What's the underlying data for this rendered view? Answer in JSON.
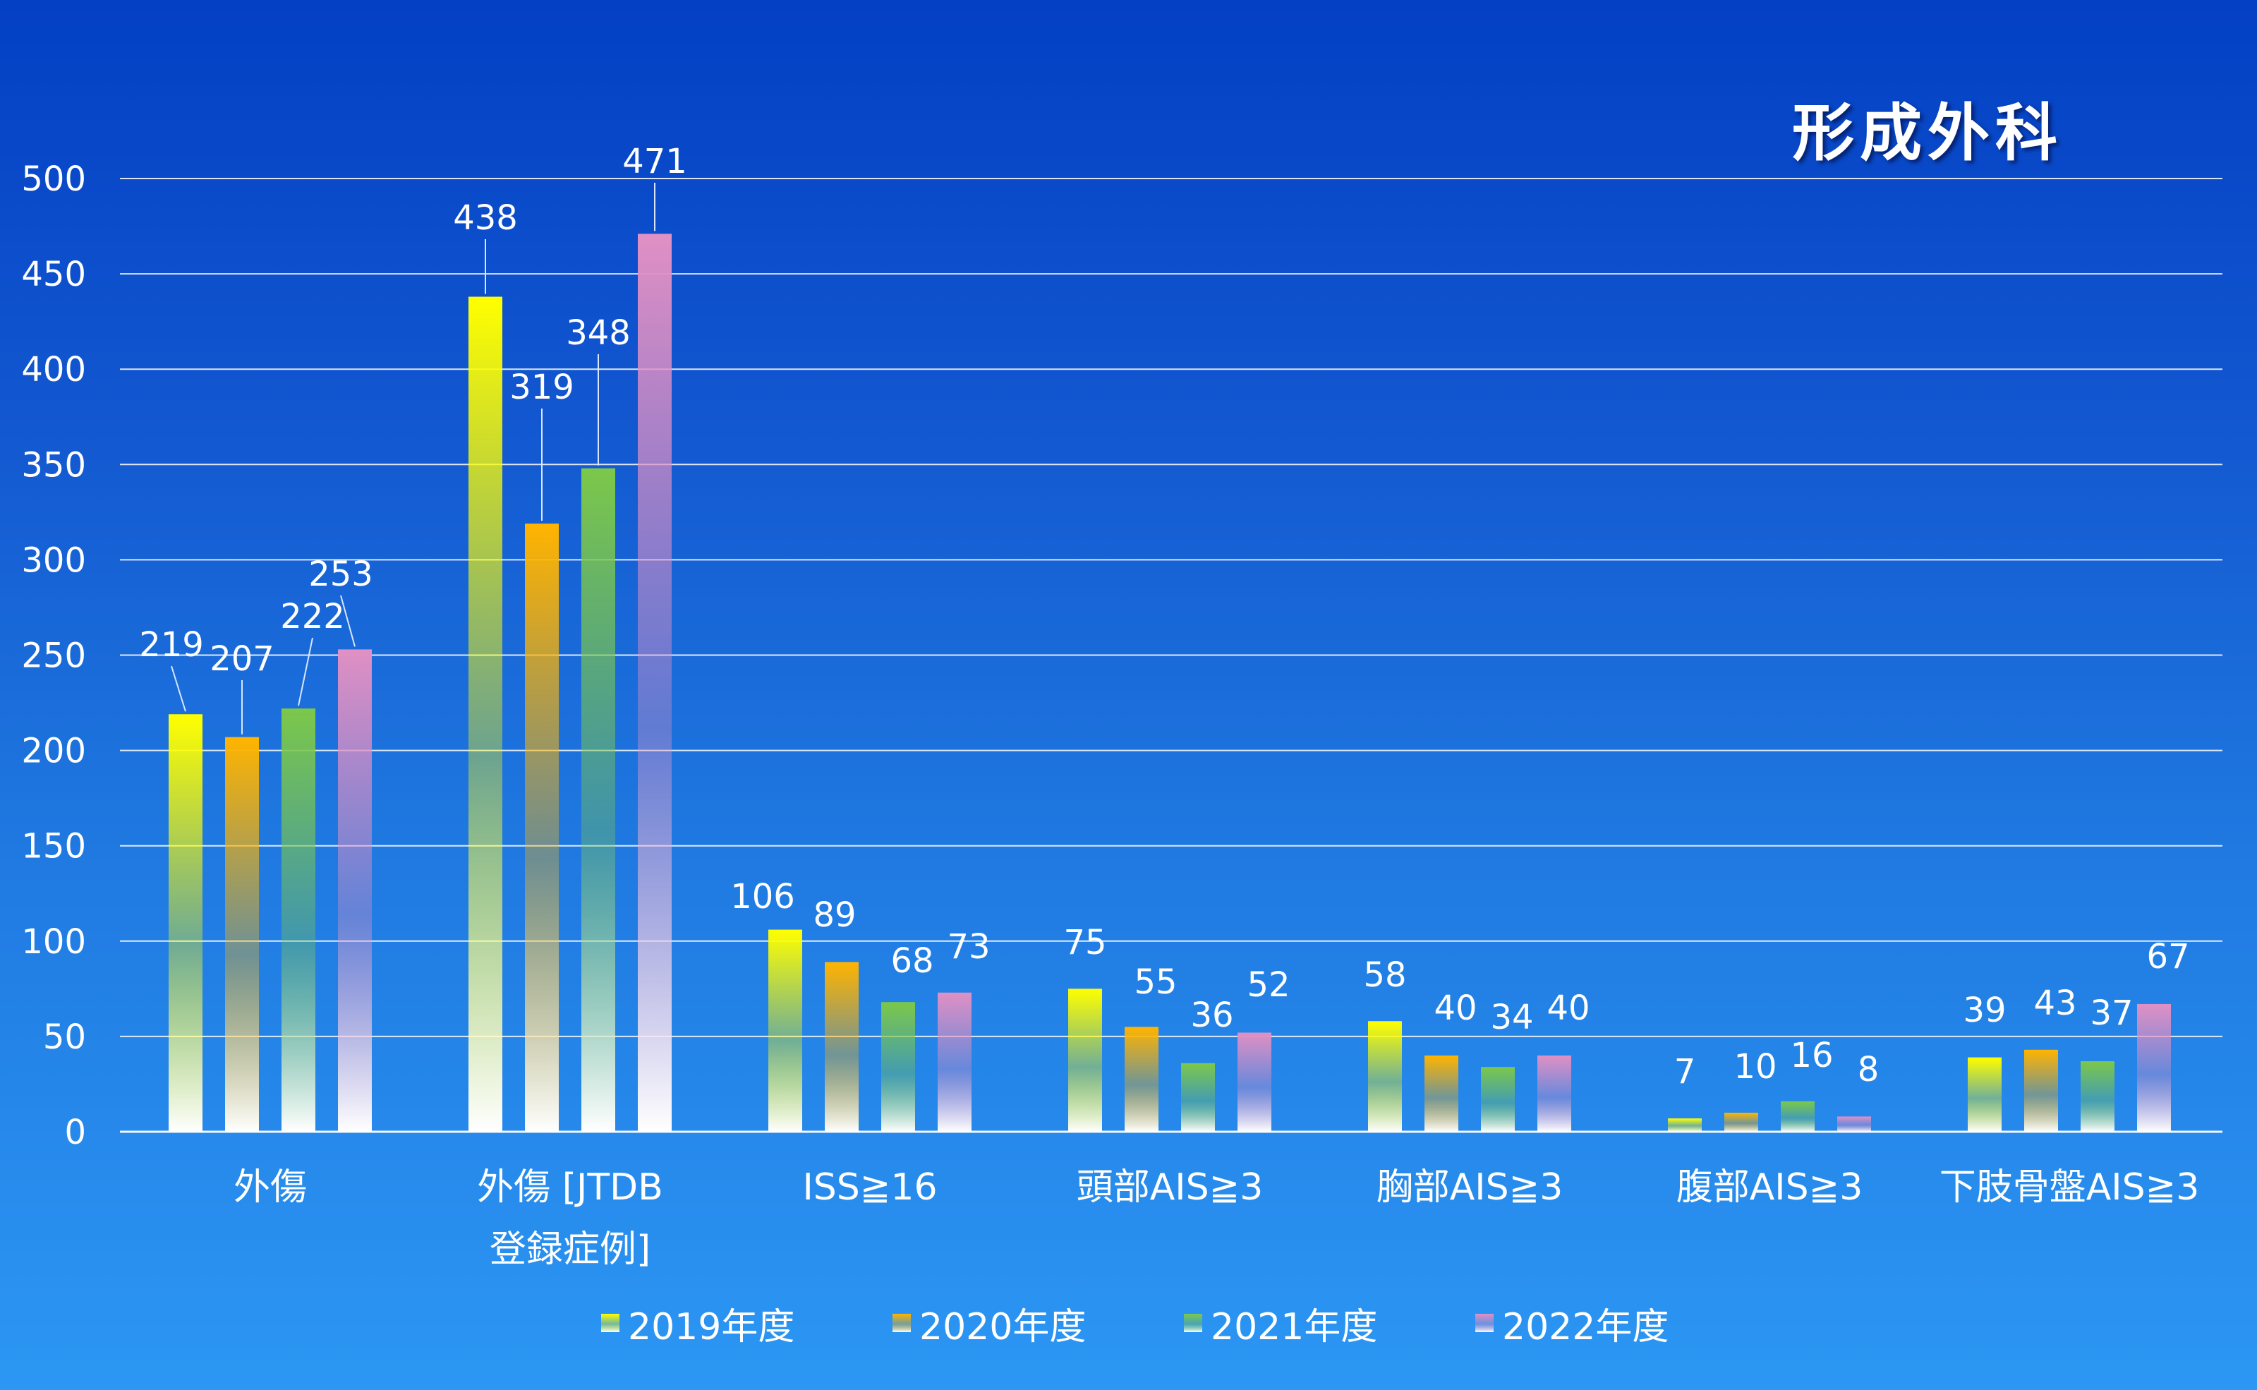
{
  "chart_data": {
    "type": "bar",
    "title": "形成外科",
    "categories": [
      [
        "外傷"
      ],
      [
        "外傷 [JTDB",
        "登録症例]"
      ],
      [
        "ISS≧16"
      ],
      [
        "頭部AIS≧3"
      ],
      [
        "胸部AIS≧3"
      ],
      [
        "腹部AIS≧3"
      ],
      [
        "下肢骨盤AIS≧3"
      ]
    ],
    "series": [
      {
        "name": "2019年度",
        "values": [
          219,
          438,
          106,
          75,
          58,
          7,
          39
        ],
        "color": "#ffff00"
      },
      {
        "name": "2020年度",
        "values": [
          207,
          319,
          89,
          55,
          40,
          10,
          43
        ],
        "color": "#ffb400"
      },
      {
        "name": "2021年度",
        "values": [
          222,
          348,
          68,
          36,
          34,
          16,
          37
        ],
        "color": "#7cc84a"
      },
      {
        "name": "2022年度",
        "values": [
          253,
          471,
          73,
          52,
          40,
          8,
          67
        ],
        "color": "#e090c4"
      }
    ],
    "ylim": [
      0,
      500
    ],
    "yticks": [
      0,
      50,
      100,
      150,
      200,
      250,
      300,
      350,
      400,
      450,
      500
    ],
    "grid": true,
    "legend": "bottom"
  }
}
